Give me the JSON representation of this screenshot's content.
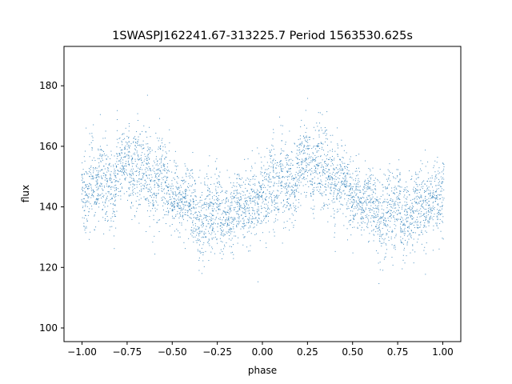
{
  "chart_data": {
    "type": "scatter",
    "title": "1SWASPJ162241.67-313225.7 Period 1563530.625s",
    "xlabel": "phase",
    "ylabel": "flux",
    "xlim": [
      -1.1,
      1.1
    ],
    "ylim": [
      95.5,
      193
    ],
    "x_ticks": [
      -1.0,
      -0.75,
      -0.5,
      -0.25,
      0.0,
      0.25,
      0.5,
      0.75,
      1.0
    ],
    "x_tick_labels": [
      "−1.00",
      "−0.75",
      "−0.50",
      "−0.25",
      "0.00",
      "0.25",
      "0.50",
      "0.75",
      "1.00"
    ],
    "y_ticks": [
      100,
      120,
      140,
      160,
      180
    ],
    "y_tick_labels": [
      "100",
      "120",
      "140",
      "160",
      "180"
    ],
    "grid": false,
    "legend": "none",
    "marker_color": "#1f77b4",
    "marker": "small dot",
    "series": [
      {
        "phase": [
          -1.0,
          -0.975,
          -0.95,
          -0.925,
          -0.9,
          -0.875,
          -0.85,
          -0.825,
          -0.8,
          -0.775,
          -0.75,
          -0.725,
          -0.7,
          -0.675,
          -0.65,
          -0.625,
          -0.6,
          -0.575,
          -0.55,
          -0.525,
          -0.5,
          -0.475,
          -0.45,
          -0.425,
          -0.4,
          -0.375,
          -0.35,
          -0.325,
          -0.3,
          -0.275,
          -0.25,
          -0.225,
          -0.2,
          -0.175,
          -0.15,
          -0.125,
          -0.1,
          -0.075,
          -0.05,
          -0.025,
          0.0,
          0.025,
          0.05,
          0.075,
          0.1,
          0.125,
          0.15,
          0.175,
          0.2,
          0.225,
          0.25,
          0.275,
          0.3,
          0.325,
          0.35,
          0.375,
          0.4,
          0.425,
          0.45,
          0.475,
          0.5,
          0.525,
          0.55,
          0.575,
          0.6,
          0.625,
          0.65,
          0.675,
          0.7,
          0.725,
          0.75,
          0.775,
          0.8,
          0.825,
          0.85,
          0.875,
          0.9,
          0.925,
          0.95,
          0.975,
          1.0
        ],
        "flux_center": [
          146,
          143,
          150,
          147,
          152,
          148,
          147,
          145,
          153,
          155,
          156,
          150,
          154,
          152,
          151,
          150,
          146,
          149,
          150,
          145,
          142,
          144,
          141,
          143,
          142,
          139,
          136,
          134,
          140,
          138,
          142,
          135,
          138,
          136,
          140,
          141,
          139,
          140,
          144,
          142,
          146,
          143,
          150,
          147,
          152,
          148,
          147,
          145,
          153,
          155,
          156,
          150,
          154,
          152,
          151,
          150,
          146,
          149,
          150,
          145,
          142,
          144,
          141,
          143,
          142,
          139,
          136,
          134,
          140,
          138,
          142,
          135,
          138,
          136,
          140,
          141,
          139,
          140,
          144,
          142,
          146
        ],
        "flux_spread": [
          6,
          7,
          7,
          6,
          7,
          7,
          6,
          6,
          6,
          6,
          6,
          7,
          7,
          7,
          8,
          7,
          7,
          7,
          6,
          6,
          5,
          5,
          5,
          6,
          6,
          6,
          7,
          7,
          6,
          6,
          6,
          6,
          6,
          6,
          6,
          6,
          6,
          6,
          6,
          6,
          6,
          7,
          7,
          6,
          7,
          7,
          6,
          6,
          6,
          6,
          6,
          7,
          7,
          7,
          8,
          7,
          7,
          7,
          6,
          6,
          5,
          5,
          5,
          6,
          6,
          6,
          7,
          7,
          6,
          6,
          6,
          6,
          6,
          6,
          6,
          6,
          6,
          6,
          6,
          6,
          6
        ]
      }
    ]
  }
}
